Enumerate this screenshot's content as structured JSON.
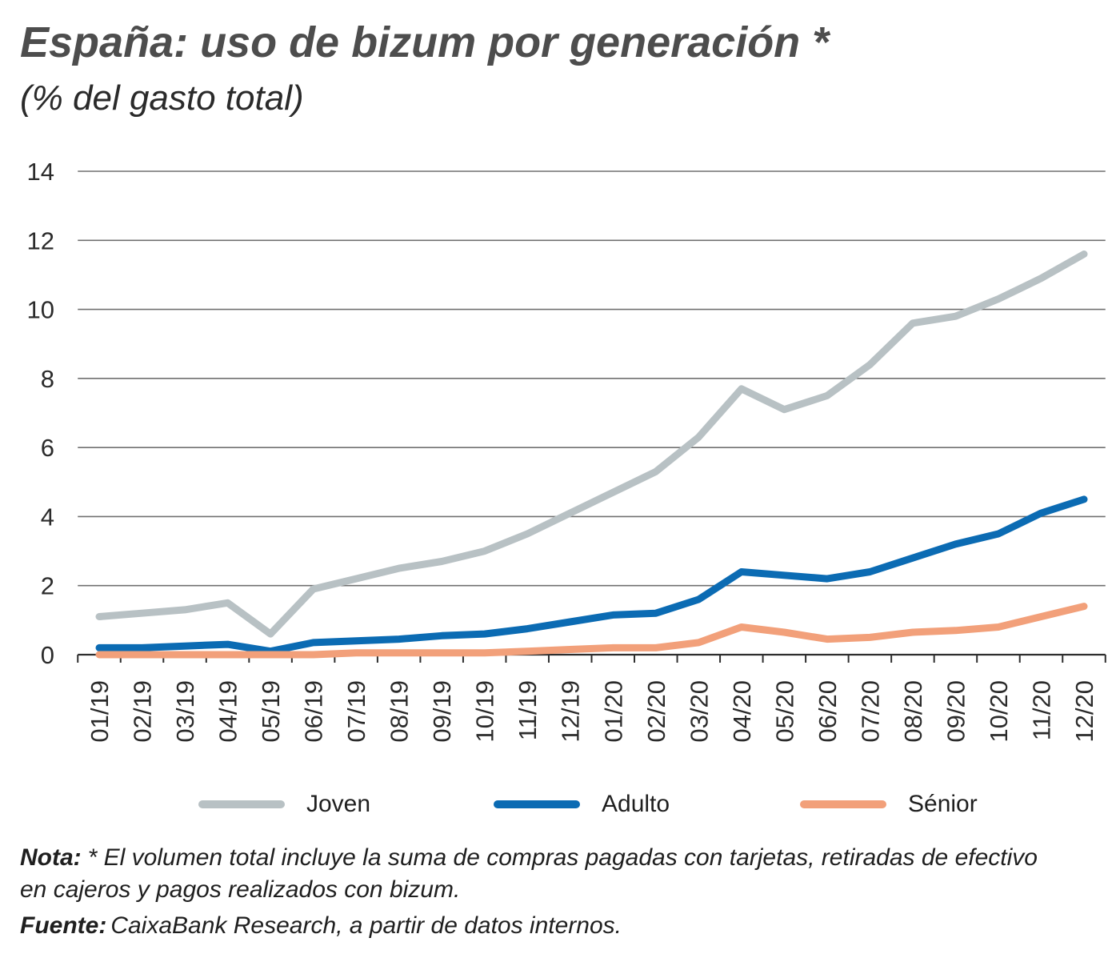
{
  "chart_data": {
    "type": "line",
    "title": "España: uso de bizum por generación *",
    "subtitle": "(% del gasto total)",
    "x": [
      "01/19",
      "02/19",
      "03/19",
      "04/19",
      "05/19",
      "06/19",
      "07/19",
      "08/19",
      "09/19",
      "10/19",
      "11/19",
      "12/19",
      "01/20",
      "02/20",
      "03/20",
      "04/20",
      "05/20",
      "06/20",
      "07/20",
      "08/20",
      "09/20",
      "10/20",
      "11/20",
      "12/20"
    ],
    "y_ticks": [
      0,
      2,
      4,
      6,
      8,
      10,
      12,
      14
    ],
    "ylim": [
      0,
      14
    ],
    "grid": true,
    "legend_position": "bottom",
    "series": [
      {
        "name": "Joven",
        "color": "#b8c1c4",
        "values": [
          1.1,
          1.2,
          1.3,
          1.5,
          0.6,
          1.9,
          2.2,
          2.5,
          2.7,
          3.0,
          3.5,
          4.1,
          4.7,
          5.3,
          6.3,
          7.7,
          7.1,
          7.5,
          8.4,
          9.6,
          9.8,
          10.3,
          10.9,
          11.6
        ]
      },
      {
        "name": "Adulto",
        "color": "#0b6bb3",
        "values": [
          0.2,
          0.2,
          0.25,
          0.3,
          0.1,
          0.35,
          0.4,
          0.45,
          0.55,
          0.6,
          0.75,
          0.95,
          1.15,
          1.2,
          1.6,
          2.4,
          2.3,
          2.2,
          2.4,
          2.8,
          3.2,
          3.5,
          4.1,
          4.5
        ]
      },
      {
        "name": "Sénior",
        "color": "#f2a07a",
        "values": [
          0.0,
          0.0,
          0.0,
          0.0,
          0.0,
          0.0,
          0.05,
          0.05,
          0.05,
          0.05,
          0.1,
          0.15,
          0.2,
          0.2,
          0.35,
          0.8,
          0.65,
          0.45,
          0.5,
          0.65,
          0.7,
          0.8,
          1.1,
          1.4
        ]
      }
    ]
  },
  "notes": {
    "nota_label": "Nota:",
    "nota_lines": [
      "* El volumen total incluye la suma de compras pagadas con tarjetas, retiradas de efectivo",
      "en cajeros y pagos realizados con bizum."
    ],
    "fuente_label": "Fuente:",
    "fuente_text": "CaixaBank Research, a partir de datos internos."
  }
}
